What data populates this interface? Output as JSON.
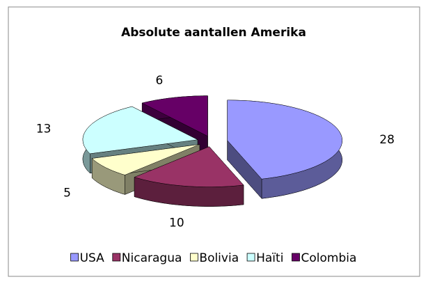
{
  "chart_data": {
    "type": "pie3d",
    "title": "Absolute aantallen Amerika",
    "categories": [
      "USA",
      "Nicaragua",
      "Bolivia",
      "Haïti",
      "Colombia"
    ],
    "values": [
      28,
      10,
      5,
      13,
      6
    ],
    "colors": [
      "#9999ff",
      "#993366",
      "#ffffcc",
      "#ccffff",
      "#660066"
    ],
    "legend": "bottom"
  }
}
